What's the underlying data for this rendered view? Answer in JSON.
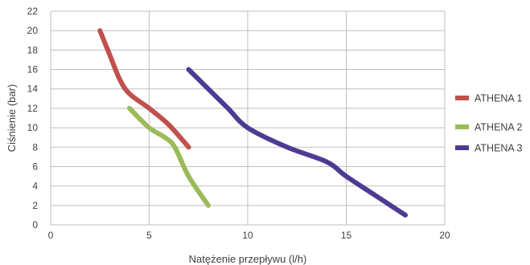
{
  "chart_data": {
    "type": "line",
    "xlabel": "Natężenie przepływu (l/h)",
    "ylabel": "Ciśnienie (bar)",
    "xlim": [
      0,
      20
    ],
    "ylim": [
      0,
      22
    ],
    "x_ticks": [
      0,
      5,
      10,
      15,
      20
    ],
    "y_ticks": [
      0,
      2,
      4,
      6,
      8,
      10,
      12,
      14,
      16,
      18,
      20,
      22
    ],
    "grid": true,
    "legend_position": "right",
    "series": [
      {
        "name": "ATHENA 1",
        "color": "#c0504d",
        "points": [
          [
            2.5,
            20
          ],
          [
            3.0,
            17.5
          ],
          [
            3.5,
            15
          ],
          [
            4.0,
            13.5
          ],
          [
            5.0,
            12
          ],
          [
            6.0,
            10.3
          ],
          [
            7.0,
            8
          ]
        ]
      },
      {
        "name": "ATHENA 2",
        "color": "#9bbb59",
        "points": [
          [
            4.0,
            12
          ],
          [
            5.0,
            10
          ],
          [
            5.8,
            9
          ],
          [
            6.3,
            8
          ],
          [
            7.0,
            5
          ],
          [
            8.0,
            2
          ]
        ]
      },
      {
        "name": "ATHENA 3",
        "color": "#4f3a93",
        "points": [
          [
            7.0,
            16
          ],
          [
            8.0,
            14
          ],
          [
            9.0,
            12
          ],
          [
            10.0,
            10
          ],
          [
            12.0,
            8
          ],
          [
            14.0,
            6.5
          ],
          [
            15.0,
            5
          ],
          [
            16.5,
            3
          ],
          [
            18.0,
            1
          ]
        ]
      }
    ]
  }
}
